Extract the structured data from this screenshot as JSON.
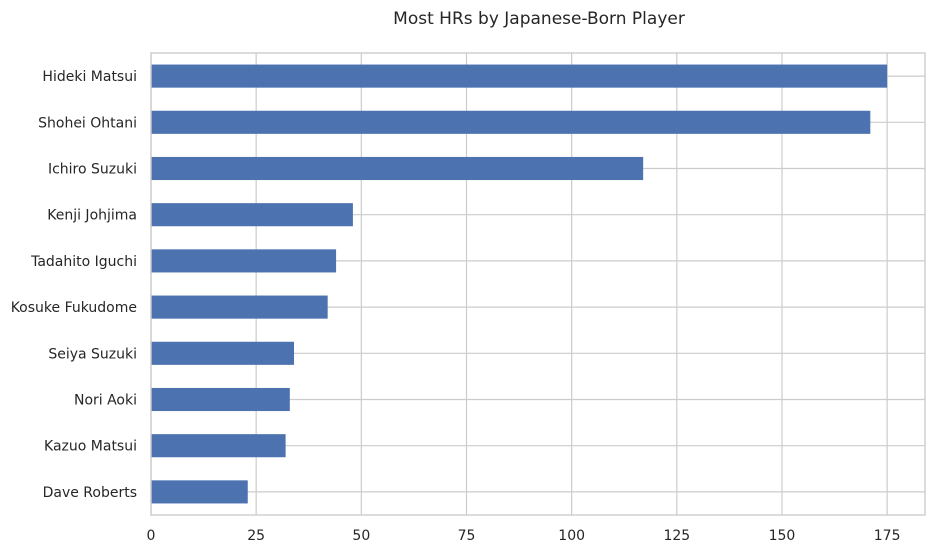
{
  "chart_data": {
    "type": "bar",
    "orientation": "horizontal",
    "title": "Most HRs by Japanese-Born Player",
    "xlabel": "",
    "ylabel": "",
    "categories": [
      "Hideki Matsui",
      "Shohei Ohtani",
      "Ichiro Suzuki",
      "Kenji Johjima",
      "Tadahito Iguchi",
      "Kosuke Fukudome",
      "Seiya Suzuki",
      "Nori Aoki",
      "Kazuo Matsui",
      "Dave Roberts"
    ],
    "values": [
      175,
      171,
      117,
      48,
      44,
      42,
      34,
      33,
      32,
      23
    ],
    "xlim": [
      0,
      184
    ],
    "xticks": [
      0,
      25,
      50,
      75,
      100,
      125,
      150,
      175
    ],
    "grid": true,
    "colors": {
      "bar": "#4c72b0",
      "grid": "#cccccc",
      "text": "#262626",
      "background": "#ffffff"
    }
  }
}
